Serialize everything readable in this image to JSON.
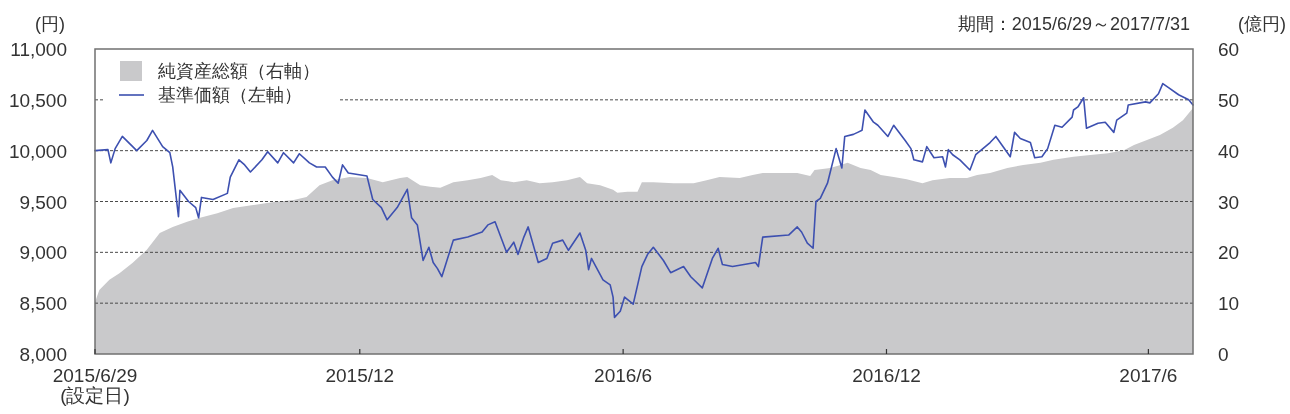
{
  "chart_data": {
    "type": "line",
    "ylabel": "(円)",
    "y2label": "(億円)",
    "annotations": [
      "期間：2015/6/29～2017/7/31"
    ],
    "xlim": [
      "2015-06-29",
      "2017-07-31"
    ],
    "xticks": [
      {
        "value": "2015-06-29",
        "label": "2015/6/29 (設定日)"
      },
      {
        "value": "2015-12-30",
        "label": "2015/12"
      },
      {
        "value": "2016-06-30",
        "label": "2016/6"
      },
      {
        "value": "2016-12-30",
        "label": "2016/12"
      },
      {
        "value": "2017-06-30",
        "label": "2017/6"
      }
    ],
    "ylim": [
      8000,
      11000
    ],
    "yticks": [
      {
        "value": 8000,
        "label": "8,000"
      },
      {
        "value": 8500,
        "label": "8,500"
      },
      {
        "value": 9000,
        "label": "9,000"
      },
      {
        "value": 9500,
        "label": "9,500"
      },
      {
        "value": 10000,
        "label": "10,000"
      },
      {
        "value": 10500,
        "label": "10,500"
      },
      {
        "value": 11000,
        "label": "11,000"
      }
    ],
    "y2lim": [
      0,
      60
    ],
    "y2ticks": [
      0,
      10,
      20,
      30,
      40,
      50,
      60
    ],
    "grid": "y",
    "legend": "top left",
    "line_style": "solid",
    "series": [
      {
        "name": "純資産総額（右軸）",
        "type": "area",
        "axis": "y2",
        "color": "#c9c9cb",
        "x": [
          "2015-06-29",
          "2015-07-02",
          "2015-07-09",
          "2015-07-16",
          "2015-07-25",
          "2015-08-04",
          "2015-08-13",
          "2015-08-22",
          "2015-09-01",
          "2015-09-10",
          "2015-09-22",
          "2015-10-03",
          "2015-10-17",
          "2015-10-31",
          "2015-11-14",
          "2015-11-23",
          "2015-12-02",
          "2015-12-11",
          "2015-12-23",
          "2016-01-04",
          "2016-01-15",
          "2016-01-27",
          "2016-02-01",
          "2016-02-10",
          "2016-02-17",
          "2016-02-24",
          "2016-03-04",
          "2016-03-14",
          "2016-03-23",
          "2016-03-31",
          "2016-04-06",
          "2016-04-15",
          "2016-04-24",
          "2016-05-03",
          "2016-05-12",
          "2016-05-22",
          "2016-05-31",
          "2016-06-05",
          "2016-06-14",
          "2016-06-23",
          "2016-06-26",
          "2016-07-03",
          "2016-07-10",
          "2016-07-13",
          "2016-07-21",
          "2016-08-04",
          "2016-08-18",
          "2016-08-27",
          "2016-09-05",
          "2016-09-19",
          "2016-09-28",
          "2016-10-05",
          "2016-10-17",
          "2016-10-29",
          "2016-11-07",
          "2016-11-10",
          "2016-11-21",
          "2016-11-28",
          "2016-12-03",
          "2016-12-12",
          "2016-12-19",
          "2016-12-26",
          "2017-01-04",
          "2017-01-13",
          "2017-01-24",
          "2017-01-31",
          "2017-02-12",
          "2017-02-24",
          "2017-03-03",
          "2017-03-12",
          "2017-03-24",
          "2017-04-04",
          "2017-04-16",
          "2017-04-25",
          "2017-05-09",
          "2017-05-19",
          "2017-06-02",
          "2017-06-13",
          "2017-06-20",
          "2017-06-29",
          "2017-07-08",
          "2017-07-17",
          "2017-07-24",
          "2017-07-31"
        ],
        "values": [
          10.2,
          12.6,
          14.6,
          15.9,
          17.9,
          20.5,
          23.8,
          25.0,
          26.0,
          26.8,
          27.7,
          28.7,
          29.3,
          29.9,
          30.3,
          30.9,
          33.2,
          34.2,
          34.8,
          34.6,
          33.8,
          34.6,
          34.8,
          33.2,
          32.9,
          32.7,
          33.8,
          34.2,
          34.6,
          35.2,
          34.2,
          33.8,
          34.2,
          33.6,
          33.8,
          34.2,
          34.8,
          33.6,
          33.2,
          32.3,
          31.7,
          31.9,
          31.9,
          33.8,
          33.8,
          33.6,
          33.6,
          34.2,
          34.8,
          34.6,
          35.2,
          35.6,
          35.6,
          35.6,
          35.0,
          36.2,
          36.6,
          37.2,
          37.6,
          36.6,
          36.2,
          35.2,
          34.8,
          34.4,
          33.6,
          34.2,
          34.6,
          34.6,
          35.2,
          35.6,
          36.6,
          37.2,
          37.6,
          38.2,
          38.8,
          39.1,
          39.5,
          40.1,
          41.1,
          42.1,
          43.1,
          44.5,
          46.0,
          48.4
        ]
      },
      {
        "name": "基準価額（左軸）",
        "color": "#3d50b0",
        "x": [
          "2015-06-29",
          "2015-07-08",
          "2015-07-10",
          "2015-07-13",
          "2015-07-18",
          "2015-07-28",
          "2015-08-04",
          "2015-08-08",
          "2015-08-15",
          "2015-08-20",
          "2015-08-22",
          "2015-08-26",
          "2015-08-27",
          "2015-09-02",
          "2015-09-07",
          "2015-09-09",
          "2015-09-11",
          "2015-09-19",
          "2015-09-29",
          "2015-10-01",
          "2015-10-07",
          "2015-10-11",
          "2015-10-15",
          "2015-10-23",
          "2015-10-27",
          "2015-11-03",
          "2015-11-07",
          "2015-11-14",
          "2015-11-18",
          "2015-11-25",
          "2015-11-30",
          "2015-12-06",
          "2015-12-11",
          "2015-12-15",
          "2015-12-18",
          "2015-12-22",
          "2016-01-04",
          "2016-01-08",
          "2016-01-14",
          "2016-01-18",
          "2016-01-25",
          "2016-02-01",
          "2016-02-04",
          "2016-02-08",
          "2016-02-12",
          "2016-02-16",
          "2016-02-19",
          "2016-02-22",
          "2016-02-25",
          "2016-03-04",
          "2016-03-14",
          "2016-03-24",
          "2016-03-28",
          "2016-04-02",
          "2016-04-10",
          "2016-04-15",
          "2016-04-18",
          "2016-04-22",
          "2016-04-25",
          "2016-05-02",
          "2016-05-08",
          "2016-05-12",
          "2016-05-19",
          "2016-05-23",
          "2016-05-31",
          "2016-06-04",
          "2016-06-06",
          "2016-06-08",
          "2016-06-16",
          "2016-06-21",
          "2016-06-23",
          "2016-06-24",
          "2016-06-28",
          "2016-07-01",
          "2016-07-07",
          "2016-07-13",
          "2016-07-17",
          "2016-07-21",
          "2016-07-28",
          "2016-08-02",
          "2016-08-11",
          "2016-08-16",
          "2016-08-24",
          "2016-08-31",
          "2016-09-04",
          "2016-09-07",
          "2016-09-14",
          "2016-09-30",
          "2016-10-02",
          "2016-10-05",
          "2016-10-23",
          "2016-10-29",
          "2016-11-01",
          "2016-11-05",
          "2016-11-09",
          "2016-11-11",
          "2016-11-14",
          "2016-11-19",
          "2016-11-25",
          "2016-11-29",
          "2016-12-01",
          "2016-12-07",
          "2016-12-10",
          "2016-12-13",
          "2016-12-15",
          "2016-12-21",
          "2016-12-24",
          "2016-12-31",
          "2017-01-04",
          "2017-01-12",
          "2017-01-16",
          "2017-01-18",
          "2017-01-24",
          "2017-01-27",
          "2017-02-01",
          "2017-02-07",
          "2017-02-09",
          "2017-02-11",
          "2017-02-14",
          "2017-02-19",
          "2017-02-26",
          "2017-03-02",
          "2017-03-12",
          "2017-03-16",
          "2017-03-26",
          "2017-03-29",
          "2017-04-02",
          "2017-04-09",
          "2017-04-12",
          "2017-04-17",
          "2017-04-21",
          "2017-04-26",
          "2017-05-01",
          "2017-05-08",
          "2017-05-09",
          "2017-05-12",
          "2017-05-16",
          "2017-05-18",
          "2017-05-26",
          "2017-05-31",
          "2017-06-06",
          "2017-06-08",
          "2017-06-15",
          "2017-06-16",
          "2017-06-28",
          "2017-07-01",
          "2017-07-07",
          "2017-07-10",
          "2017-07-14",
          "2017-07-21",
          "2017-07-28",
          "2017-07-31"
        ],
        "values": [
          10000,
          10010,
          9880,
          10020,
          10140,
          10000,
          10100,
          10200,
          10040,
          9980,
          9840,
          9350,
          9610,
          9500,
          9440,
          9340,
          9540,
          9520,
          9580,
          9740,
          9910,
          9860,
          9790,
          9910,
          9990,
          9880,
          9980,
          9880,
          9970,
          9880,
          9840,
          9840,
          9740,
          9680,
          9860,
          9780,
          9750,
          9520,
          9440,
          9320,
          9440,
          9620,
          9340,
          9270,
          8920,
          9050,
          8900,
          8840,
          8760,
          9120,
          9150,
          9200,
          9270,
          9300,
          9000,
          9100,
          8980,
          9150,
          9250,
          8900,
          8940,
          9090,
          9120,
          9020,
          9190,
          9020,
          8830,
          8940,
          8730,
          8680,
          8560,
          8360,
          8420,
          8560,
          8490,
          8860,
          8980,
          9050,
          8920,
          8800,
          8860,
          8760,
          8650,
          8940,
          9040,
          8880,
          8860,
          8900,
          8860,
          9150,
          9170,
          9250,
          9200,
          9090,
          9040,
          9500,
          9530,
          9680,
          10020,
          9830,
          10140,
          10160,
          10180,
          10200,
          10400,
          10280,
          10250,
          10140,
          10250,
          10100,
          10020,
          9910,
          9890,
          10040,
          9930,
          9940,
          9840,
          10010,
          9960,
          9910,
          9810,
          9960,
          10080,
          10140,
          9940,
          10180,
          10120,
          10080,
          9930,
          9940,
          10020,
          10250,
          10230,
          10330,
          10400,
          10430,
          10520,
          10220,
          10270,
          10280,
          10180,
          10300,
          10370,
          10450,
          10480,
          10470,
          10560,
          10660,
          10620,
          10550,
          10500,
          10450
        ]
      }
    ]
  }
}
